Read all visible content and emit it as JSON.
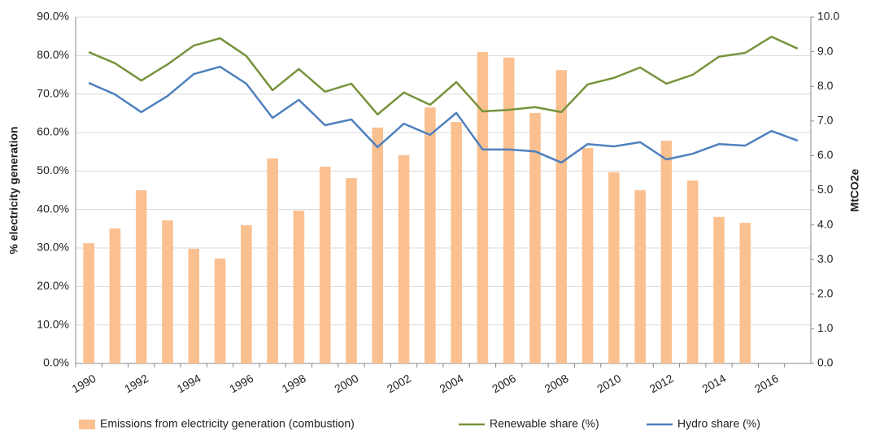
{
  "chart_data": {
    "type": "bar",
    "y_label": "% electricity generation",
    "y2_label": "MtCO2e",
    "categories": [
      "1990",
      null,
      "1992",
      null,
      "1994",
      null,
      "1996",
      null,
      "1998",
      null,
      "2000",
      null,
      "2002",
      null,
      "2004",
      null,
      "2006",
      null,
      "2008",
      null,
      "2010",
      null,
      "2012",
      null,
      "2014",
      null,
      "2016",
      null
    ],
    "series": [
      {
        "name": "Emissions from electricity generation (combustion)",
        "type": "bar",
        "axis": "y2",
        "color": "#fac090",
        "values": [
          3.47,
          3.9,
          5.0,
          4.13,
          3.31,
          3.03,
          3.99,
          5.92,
          4.41,
          5.68,
          5.35,
          6.81,
          6.01,
          7.39,
          6.97,
          8.99,
          8.83,
          7.23,
          8.47,
          6.22,
          5.52,
          5.0,
          6.43,
          5.28,
          4.23,
          4.06,
          null,
          null
        ]
      },
      {
        "name": "Renewable share (%)",
        "type": "line",
        "color": "#77933c",
        "values": [
          80.9,
          78,
          73.5,
          77.7,
          82.6,
          84.5,
          79.9,
          71,
          76.5,
          70.6,
          72.7,
          64.7,
          70.4,
          67.2,
          73.1,
          65.5,
          65.9,
          66.6,
          65.3,
          72.5,
          74.2,
          76.9,
          72.7,
          75,
          79.7,
          80.7,
          84.9,
          81.8
        ]
      },
      {
        "name": "Hydro share (%)",
        "type": "line",
        "color": "#4f81bd",
        "values": [
          72.9,
          69.9,
          65.3,
          69.5,
          75.2,
          77.1,
          72.7,
          63.8,
          68.5,
          61.9,
          63.4,
          56.2,
          62.3,
          59.4,
          65.1,
          55.6,
          55.6,
          55.1,
          52.2,
          57,
          56.4,
          57.5,
          53,
          54.5,
          57,
          56.6,
          60.4,
          57.9
        ]
      }
    ],
    "ylim": [
      0,
      90
    ],
    "yticks": [
      {
        "value": 0,
        "label": "0.0%"
      },
      {
        "value": 10,
        "label": "10.0%"
      },
      {
        "value": 20,
        "label": "20.0%"
      },
      {
        "value": 30,
        "label": "30.0%"
      },
      {
        "value": 40,
        "label": "40.0%"
      },
      {
        "value": 50,
        "label": "50.0%"
      },
      {
        "value": 60,
        "label": "60.0%"
      },
      {
        "value": 70,
        "label": "70.0%"
      },
      {
        "value": 80,
        "label": "80.0%"
      },
      {
        "value": 90,
        "label": "90.0%"
      }
    ],
    "y2lim": [
      0,
      10
    ],
    "y2ticks": [
      {
        "value": 0,
        "label": "0.0"
      },
      {
        "value": 1,
        "label": "1.0"
      },
      {
        "value": 2,
        "label": "2.0"
      },
      {
        "value": 3,
        "label": "3.0"
      },
      {
        "value": 4,
        "label": "4.0"
      },
      {
        "value": 5,
        "label": "5.0"
      },
      {
        "value": 6,
        "label": "6.0"
      },
      {
        "value": 7,
        "label": "7.0"
      },
      {
        "value": 8,
        "label": "8.0"
      },
      {
        "value": 9,
        "label": "9.0"
      },
      {
        "value": 10,
        "label": "10.0"
      }
    ],
    "grid": true,
    "legend": "bottom"
  }
}
